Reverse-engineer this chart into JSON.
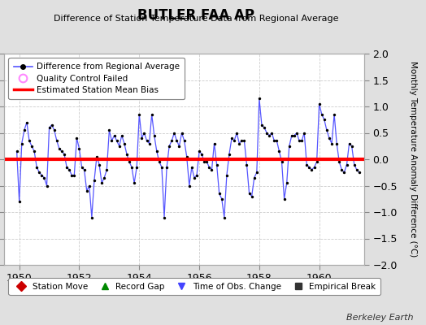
{
  "title": "BUTLER FAA AP",
  "subtitle": "Difference of Station Temperature Data from Regional Average",
  "ylabel_right": "Monthly Temperature Anomaly Difference (°C)",
  "xlim": [
    1949.5,
    1961.5
  ],
  "ylim": [
    -2,
    2
  ],
  "yticks": [
    -2,
    -1.5,
    -1,
    -0.5,
    0,
    0.5,
    1,
    1.5,
    2
  ],
  "xticks": [
    1950,
    1952,
    1954,
    1956,
    1958,
    1960
  ],
  "bias_value": 0.0,
  "background_color": "#e0e0e0",
  "plot_bg_color": "#ffffff",
  "line_color": "#5555ff",
  "bias_color": "#ff0000",
  "marker_color": "#000000",
  "watermark": "Berkeley Earth",
  "legend1_items": [
    {
      "label": "Difference from Regional Average"
    },
    {
      "label": "Quality Control Failed"
    },
    {
      "label": "Estimated Station Mean Bias"
    }
  ],
  "legend2_items": [
    {
      "label": "Station Move",
      "color": "#cc0000",
      "marker": "D"
    },
    {
      "label": "Record Gap",
      "color": "#008800",
      "marker": "^"
    },
    {
      "label": "Time of Obs. Change",
      "color": "#4444ff",
      "marker": "v"
    },
    {
      "label": "Empirical Break",
      "color": "#333333",
      "marker": "s"
    }
  ],
  "data_x": [
    1949.917,
    1950.0,
    1950.083,
    1950.167,
    1950.25,
    1950.333,
    1950.417,
    1950.5,
    1950.583,
    1950.667,
    1950.75,
    1950.833,
    1950.917,
    1951.0,
    1951.083,
    1951.167,
    1951.25,
    1951.333,
    1951.417,
    1951.5,
    1951.583,
    1951.667,
    1951.75,
    1951.833,
    1951.917,
    1952.0,
    1952.083,
    1952.167,
    1952.25,
    1952.333,
    1952.417,
    1952.5,
    1952.583,
    1952.667,
    1952.75,
    1952.833,
    1952.917,
    1953.0,
    1953.083,
    1953.167,
    1953.25,
    1953.333,
    1953.417,
    1953.5,
    1953.583,
    1953.667,
    1953.75,
    1953.833,
    1953.917,
    1954.0,
    1954.083,
    1954.167,
    1954.25,
    1954.333,
    1954.417,
    1954.5,
    1954.583,
    1954.667,
    1954.75,
    1954.833,
    1954.917,
    1955.0,
    1955.083,
    1955.167,
    1955.25,
    1955.333,
    1955.417,
    1955.5,
    1955.583,
    1955.667,
    1955.75,
    1955.833,
    1955.917,
    1956.0,
    1956.083,
    1956.167,
    1956.25,
    1956.333,
    1956.417,
    1956.5,
    1956.583,
    1956.667,
    1956.75,
    1956.833,
    1956.917,
    1957.0,
    1957.083,
    1957.167,
    1957.25,
    1957.333,
    1957.417,
    1957.5,
    1957.583,
    1957.667,
    1957.75,
    1957.833,
    1957.917,
    1958.0,
    1958.083,
    1958.167,
    1958.25,
    1958.333,
    1958.417,
    1958.5,
    1958.583,
    1958.667,
    1958.75,
    1958.833,
    1958.917,
    1959.0,
    1959.083,
    1959.167,
    1959.25,
    1959.333,
    1959.417,
    1959.5,
    1959.583,
    1959.667,
    1959.75,
    1959.833,
    1959.917,
    1960.0,
    1960.083,
    1960.167,
    1960.25,
    1960.333,
    1960.417,
    1960.5,
    1960.583,
    1960.667,
    1960.75,
    1960.833,
    1960.917,
    1961.0,
    1961.083,
    1961.167,
    1961.25,
    1961.333
  ],
  "data_y": [
    0.15,
    -0.8,
    0.3,
    0.55,
    0.7,
    0.35,
    0.25,
    0.15,
    -0.15,
    -0.25,
    -0.3,
    -0.35,
    -0.5,
    0.6,
    0.65,
    0.55,
    0.35,
    0.2,
    0.15,
    0.1,
    -0.15,
    -0.2,
    -0.3,
    -0.3,
    0.4,
    0.2,
    -0.15,
    -0.2,
    -0.6,
    -0.5,
    -1.1,
    -0.4,
    0.05,
    -0.1,
    -0.45,
    -0.35,
    -0.2,
    0.55,
    0.35,
    0.45,
    0.35,
    0.25,
    0.45,
    0.3,
    0.1,
    -0.05,
    -0.15,
    -0.45,
    -0.15,
    0.85,
    0.4,
    0.5,
    0.35,
    0.3,
    0.85,
    0.45,
    0.15,
    -0.05,
    -0.15,
    -1.1,
    -0.15,
    0.25,
    0.35,
    0.5,
    0.35,
    0.25,
    0.5,
    0.35,
    0.05,
    -0.5,
    -0.15,
    -0.35,
    -0.3,
    0.15,
    0.1,
    -0.05,
    -0.05,
    -0.15,
    -0.2,
    0.3,
    -0.1,
    -0.65,
    -0.75,
    -1.1,
    -0.3,
    0.1,
    0.4,
    0.35,
    0.5,
    0.3,
    0.35,
    0.35,
    -0.1,
    -0.65,
    -0.7,
    -0.35,
    -0.25,
    1.15,
    0.65,
    0.6,
    0.5,
    0.45,
    0.5,
    0.35,
    0.35,
    0.15,
    -0.05,
    -0.75,
    -0.45,
    0.25,
    0.45,
    0.45,
    0.5,
    0.35,
    0.35,
    0.5,
    -0.1,
    -0.15,
    -0.2,
    -0.15,
    -0.05,
    1.05,
    0.85,
    0.75,
    0.55,
    0.4,
    0.3,
    0.85,
    0.3,
    -0.05,
    -0.2,
    -0.25,
    -0.1,
    0.3,
    0.25,
    -0.1,
    -0.2,
    -0.25
  ]
}
